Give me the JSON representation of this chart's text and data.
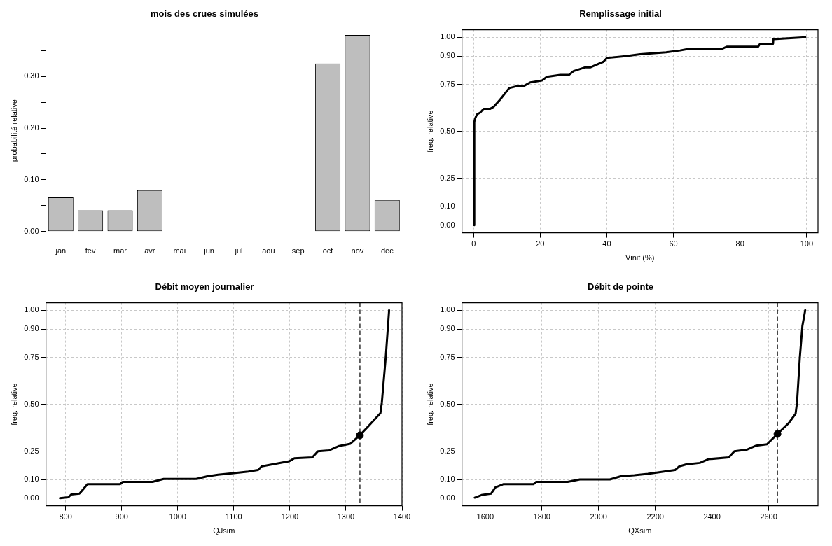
{
  "chart_data": [
    {
      "type": "bar",
      "title": "mois des crues simulées",
      "ylabel": "probabilité relative",
      "categories": [
        "jan",
        "fev",
        "mar",
        "avr",
        "mai",
        "jun",
        "jul",
        "aou",
        "sep",
        "oct",
        "nov",
        "dec"
      ],
      "series": [
        {
          "color": "#bebebe",
          "values": [
            0.066,
            0.041,
            0.041,
            0.08,
            0,
            0,
            0,
            0,
            0,
            0.325,
            0.38,
            0.061
          ]
        }
      ],
      "ylim": [
        0,
        0.39
      ],
      "yticks": [
        {
          "value": 0,
          "label": "0.00"
        },
        {
          "value": 0.05,
          "label": null
        },
        {
          "value": 0.1,
          "label": "0.10"
        },
        {
          "value": 0.15,
          "label": null
        },
        {
          "value": 0.2,
          "label": "0.20"
        },
        {
          "value": 0.25,
          "label": null
        },
        {
          "value": 0.3,
          "label": "0.30"
        },
        {
          "value": 0.35,
          "label": null
        }
      ],
      "grid": false,
      "legend": false
    },
    {
      "type": "line",
      "title": "Remplissage initial",
      "xlabel": "Vinit (%)",
      "ylabel": "freq. relative",
      "series": [
        {
          "color": "#000000",
          "marker": "none",
          "x": [
            0.2,
            0.2,
            0.5,
            1,
            2,
            3,
            5,
            6,
            8,
            10.7,
            13,
            15,
            17,
            20.5,
            22,
            26,
            28.6,
            30,
            33.4,
            35,
            39,
            40,
            45.6,
            50,
            57.8,
            62,
            65,
            74.8,
            76,
            85.4,
            86,
            89.9,
            90,
            99.6
          ],
          "values": [
            0,
            0.55,
            0.57,
            0.59,
            0.6,
            0.62,
            0.62,
            0.63,
            0.67,
            0.73,
            0.74,
            0.74,
            0.76,
            0.77,
            0.79,
            0.8,
            0.8,
            0.82,
            0.84,
            0.84,
            0.87,
            0.89,
            0.9,
            0.91,
            0.92,
            0.93,
            0.94,
            0.94,
            0.95,
            0.95,
            0.965,
            0.965,
            0.99,
            1.0
          ]
        }
      ],
      "xlim": [
        -3.5,
        103.4
      ],
      "xticks": [
        0,
        20,
        40,
        60,
        80,
        100
      ],
      "ylim": [
        -0.04,
        1.04
      ],
      "yticks": [
        {
          "value": 0,
          "label": "0.00"
        },
        {
          "value": 0.1,
          "label": "0.10"
        },
        {
          "value": 0.25,
          "label": "0.25"
        },
        {
          "value": 0.5,
          "label": "0.50"
        },
        {
          "value": 0.75,
          "label": "0.75"
        },
        {
          "value": 0.9,
          "label": "0.90"
        },
        {
          "value": 1,
          "label": "1.00"
        }
      ],
      "grid": true,
      "legend": false
    },
    {
      "type": "line",
      "title": "Débit moyen journalier",
      "xlabel": "QJsim",
      "ylabel": "freq. relative",
      "series": [
        {
          "color": "#000000",
          "marker": "none",
          "x": [
            790,
            805,
            810,
            825,
            832,
            839,
            897,
            902,
            955,
            975,
            1033,
            1053,
            1072,
            1097,
            1126,
            1143,
            1150,
            1199,
            1208,
            1240,
            1250,
            1270,
            1288,
            1308,
            1324,
            1340,
            1361.5,
            1364,
            1371,
            1377
          ],
          "values": [
            0,
            0.005,
            0.02,
            0.025,
            0.05,
            0.075,
            0.075,
            0.087,
            0.087,
            0.103,
            0.103,
            0.117,
            0.125,
            0.133,
            0.142,
            0.15,
            0.17,
            0.197,
            0.213,
            0.217,
            0.25,
            0.255,
            0.278,
            0.29,
            0.333,
            0.383,
            0.453,
            0.508,
            0.75,
            1.0
          ]
        },
        {
          "type": "scatter",
          "color": "#000000",
          "marker": "circle",
          "x": [
            1325
          ],
          "values": [
            0.335
          ]
        }
      ],
      "ref_lines": [
        {
          "axis": "x",
          "value": 1325,
          "color": "#000000",
          "line_style": "dashed"
        }
      ],
      "xlim": [
        765,
        1400
      ],
      "xticks": [
        800,
        900,
        1000,
        1100,
        1200,
        1300,
        1400
      ],
      "ylim": [
        -0.04,
        1.04
      ],
      "yticks": [
        {
          "value": 0,
          "label": "0.00"
        },
        {
          "value": 0.1,
          "label": "0.10"
        },
        {
          "value": 0.25,
          "label": "0.25"
        },
        {
          "value": 0.5,
          "label": "0.50"
        },
        {
          "value": 0.75,
          "label": "0.75"
        },
        {
          "value": 0.9,
          "label": "0.90"
        },
        {
          "value": 1,
          "label": "1.00"
        }
      ],
      "grid": true,
      "legend": false
    },
    {
      "type": "line",
      "title": "Débit de pointe",
      "xlabel": "QXsim",
      "ylabel": "freq. relative",
      "series": [
        {
          "color": "#000000",
          "marker": "none",
          "x": [
            1563,
            1587,
            1621,
            1636,
            1665,
            1771,
            1780,
            1891,
            1934,
            2040,
            2078,
            2126,
            2174,
            2270,
            2285,
            2309,
            2357,
            2387,
            2459,
            2479,
            2522,
            2556,
            2594,
            2631,
            2671,
            2695,
            2700,
            2710,
            2719,
            2729
          ],
          "values": [
            0.003,
            0.017,
            0.025,
            0.058,
            0.075,
            0.075,
            0.087,
            0.087,
            0.1,
            0.1,
            0.117,
            0.122,
            0.13,
            0.15,
            0.17,
            0.18,
            0.188,
            0.208,
            0.217,
            0.25,
            0.258,
            0.28,
            0.287,
            0.342,
            0.4,
            0.45,
            0.508,
            0.75,
            0.917,
            1.0
          ]
        },
        {
          "type": "scatter",
          "color": "#000000",
          "marker": "circle",
          "x": [
            2631
          ],
          "values": [
            0.342
          ]
        }
      ],
      "ref_lines": [
        {
          "axis": "x",
          "value": 2631,
          "color": "#000000",
          "line_style": "dashed"
        }
      ],
      "xlim": [
        1518,
        2774
      ],
      "xticks": [
        1600,
        1800,
        2000,
        2200,
        2400,
        2600
      ],
      "ylim": [
        -0.04,
        1.04
      ],
      "yticks": [
        {
          "value": 0,
          "label": "0.00"
        },
        {
          "value": 0.1,
          "label": "0.10"
        },
        {
          "value": 0.25,
          "label": "0.25"
        },
        {
          "value": 0.5,
          "label": "0.50"
        },
        {
          "value": 0.75,
          "label": "0.75"
        },
        {
          "value": 0.9,
          "label": "0.90"
        },
        {
          "value": 1,
          "label": "1.00"
        }
      ],
      "grid": true,
      "legend": false
    }
  ]
}
